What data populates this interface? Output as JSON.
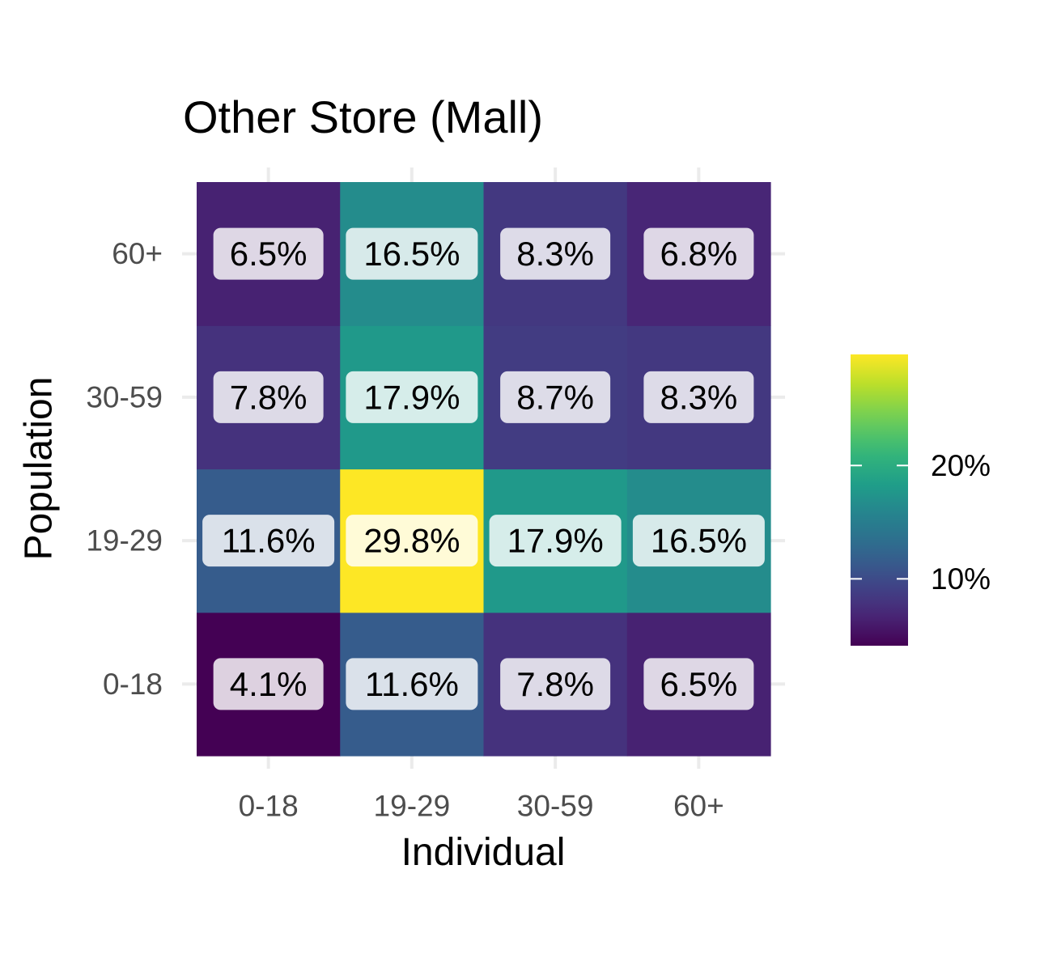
{
  "chart_data": {
    "type": "heatmap",
    "title": "Other Store (Mall)",
    "xlabel": "Individual",
    "ylabel": "Population",
    "x_categories": [
      "0-18",
      "19-29",
      "30-59",
      "60+"
    ],
    "y_categories": [
      "0-18",
      "19-29",
      "30-59",
      "60+"
    ],
    "values": [
      [
        4.1,
        11.6,
        7.8,
        6.5
      ],
      [
        11.6,
        29.8,
        17.9,
        16.5
      ],
      [
        7.8,
        17.9,
        8.7,
        8.3
      ],
      [
        6.5,
        16.5,
        8.3,
        6.8
      ]
    ],
    "value_labels": [
      [
        "4.1%",
        "11.6%",
        "7.8%",
        "6.5%"
      ],
      [
        "11.6%",
        "29.8%",
        "17.9%",
        "16.5%"
      ],
      [
        "7.8%",
        "17.9%",
        "8.7%",
        "8.3%"
      ],
      [
        "6.5%",
        "16.5%",
        "8.3%",
        "6.8%"
      ]
    ],
    "colorscale": "viridis",
    "color_range": [
      4.1,
      29.8
    ],
    "legend": {
      "position": "right",
      "ticks": [
        10,
        20
      ],
      "tick_labels": [
        "10%",
        "20%"
      ]
    },
    "grid": true
  }
}
